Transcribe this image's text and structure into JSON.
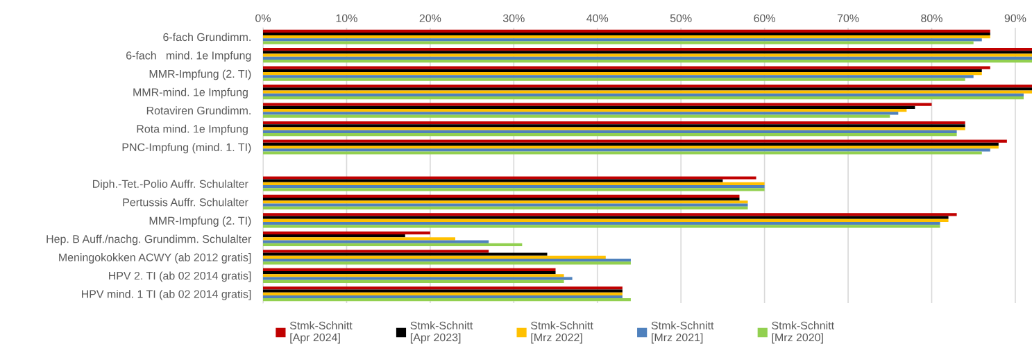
{
  "chart_data": {
    "type": "bar",
    "orientation": "horizontal",
    "categories": [
      "6-fach Grundimm.",
      "6-fach   mind. 1e Impfung",
      "MMR-Impfung (2. TI)",
      "MMR-mind. 1e Impfung ",
      "Rotaviren Grundimm.",
      "Rota mind. 1e Impfung ",
      "PNC-Impfung (mind. 1. TI)",
      null,
      "Diph.-Tet.-Polio Auffr. Schulalter ",
      "Pertussis Auffr. Schulalter ",
      "MMR-Impfung (2. TI)",
      "Hep. B Auff./nachg. Grundimm. Schulalter",
      "Meningokokken ACWY (ab 2012 gratis]",
      "HPV 2. TI (ab 02 2014 gratis]",
      "HPV mind. 1 TI (ab 02 2014 gratis]"
    ],
    "series": [
      {
        "name": "Stmk-Schnitt\n[Apr 2024]",
        "color": "#c00000",
        "values": [
          87,
          92,
          87,
          92,
          80,
          84,
          89,
          null,
          59,
          57,
          83,
          20,
          27,
          35,
          43
        ]
      },
      {
        "name": "Stmk-Schnitt\n[Apr 2023]",
        "color": "#000000",
        "values": [
          87,
          92,
          86,
          92,
          78,
          84,
          88,
          null,
          55,
          57,
          82,
          17,
          34,
          35,
          43
        ]
      },
      {
        "name": "Stmk-Schnitt\n[Mrz 2022]",
        "color": "#ffc000",
        "values": [
          87,
          92,
          86,
          92,
          77,
          84,
          88,
          null,
          60,
          58,
          82,
          23,
          41,
          36,
          43
        ]
      },
      {
        "name": "Stmk-Schnitt\n[Mrz 2021]",
        "color": "#4f81bd",
        "values": [
          86,
          92,
          85,
          91,
          76,
          83,
          87,
          null,
          60,
          58,
          81,
          27,
          44,
          37,
          43
        ]
      },
      {
        "name": "Stmk-Schnitt\n[Mrz 2020]",
        "color": "#92d050",
        "values": [
          85,
          92,
          84,
          91,
          75,
          83,
          86,
          null,
          60,
          58,
          81,
          31,
          44,
          36,
          44
        ]
      }
    ],
    "xlim": [
      0,
      92
    ],
    "xticks": [
      {
        "value": 0,
        "label": "0%"
      },
      {
        "value": 10,
        "label": "10%"
      },
      {
        "value": 20,
        "label": "20%"
      },
      {
        "value": 30,
        "label": "30%"
      },
      {
        "value": 40,
        "label": "40%"
      },
      {
        "value": 50,
        "label": "50%"
      },
      {
        "value": 60,
        "label": "60%"
      },
      {
        "value": 70,
        "label": "70%"
      },
      {
        "value": 80,
        "label": "80%"
      },
      {
        "value": 90,
        "label": "90%"
      }
    ],
    "grid": "x",
    "legend": "bottom"
  }
}
